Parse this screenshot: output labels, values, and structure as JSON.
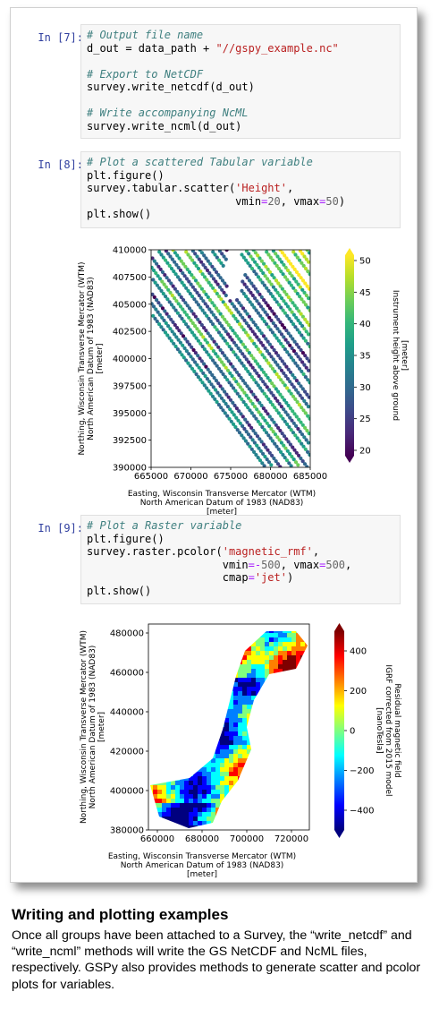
{
  "cells": [
    {
      "prompt": "In [7]:",
      "lines": [
        [
          {
            "t": "# Output file name",
            "c": "cmt"
          }
        ],
        [
          {
            "t": "d_out = data_path + ",
            "c": ""
          },
          {
            "t": "\"//gspy_example.nc\"",
            "c": "str"
          }
        ],
        [
          {
            "t": "",
            "c": ""
          }
        ],
        [
          {
            "t": "# Export to NetCDF",
            "c": "cmt"
          }
        ],
        [
          {
            "t": "survey.write_netcdf(d_out)",
            "c": ""
          }
        ],
        [
          {
            "t": "",
            "c": ""
          }
        ],
        [
          {
            "t": "# Write accompanying NcML",
            "c": "cmt"
          }
        ],
        [
          {
            "t": "survey.write_ncml(d_out)",
            "c": ""
          }
        ]
      ]
    },
    {
      "prompt": "In [8]:",
      "lines": [
        [
          {
            "t": "# Plot a scattered Tabular variable",
            "c": "cmt"
          }
        ],
        [
          {
            "t": "plt.figure()",
            "c": ""
          }
        ],
        [
          {
            "t": "survey.tabular.scatter(",
            "c": ""
          },
          {
            "t": "'Height'",
            "c": "str"
          },
          {
            "t": ",",
            "c": ""
          }
        ],
        [
          {
            "t": "                       vmin",
            "c": ""
          },
          {
            "t": "=",
            "c": "op"
          },
          {
            "t": "20",
            "c": "num"
          },
          {
            "t": ", vmax",
            "c": ""
          },
          {
            "t": "=",
            "c": "op"
          },
          {
            "t": "50",
            "c": "num"
          },
          {
            "t": ")",
            "c": ""
          }
        ],
        [
          {
            "t": "plt.show()",
            "c": ""
          }
        ]
      ]
    },
    {
      "prompt": "In [9]:",
      "lines": [
        [
          {
            "t": "# Plot a Raster variable",
            "c": "cmt"
          }
        ],
        [
          {
            "t": "plt.figure()",
            "c": ""
          }
        ],
        [
          {
            "t": "survey.raster.pcolor(",
            "c": ""
          },
          {
            "t": "'magnetic_rmf'",
            "c": "str"
          },
          {
            "t": ",",
            "c": ""
          }
        ],
        [
          {
            "t": "                     vmin",
            "c": ""
          },
          {
            "t": "=-",
            "c": "op"
          },
          {
            "t": "500",
            "c": "num"
          },
          {
            "t": ", vmax",
            "c": ""
          },
          {
            "t": "=",
            "c": "op"
          },
          {
            "t": "500",
            "c": "num"
          },
          {
            "t": ",",
            "c": ""
          }
        ],
        [
          {
            "t": "                     cmap",
            "c": ""
          },
          {
            "t": "=",
            "c": "op"
          },
          {
            "t": "'jet'",
            "c": "str"
          },
          {
            "t": ")",
            "c": ""
          }
        ],
        [
          {
            "t": "plt.show()",
            "c": ""
          }
        ]
      ]
    }
  ],
  "chart_data": [
    {
      "type": "scatter",
      "xlabel": [
        "Easting,  Wisconsin Transverse Mercator (WTM)",
        "North American Datum of 1983 (NAD83)",
        "[meter]"
      ],
      "ylabel": [
        "Northing,  Wisconsin Transverse Mercator (WTM)",
        "North American Datum of 1983 (NAD83)",
        "[meter]"
      ],
      "xticks": [
        "665000",
        "670000",
        "675000",
        "680000",
        "685000"
      ],
      "yticks": [
        "410000",
        "407500",
        "405000",
        "402500",
        "400000",
        "397500",
        "395000",
        "392500",
        "390000"
      ],
      "xlim": [
        665000,
        685000
      ],
      "ylim": [
        390000,
        410000
      ],
      "colorbar_label": [
        "Instrument height above ground",
        "[meter]"
      ],
      "colorbar_ticks": [
        "50",
        "45",
        "40",
        "35",
        "30",
        "25",
        "20"
      ],
      "clim": [
        20,
        50
      ],
      "colormap": "viridis"
    },
    {
      "type": "heatmap",
      "xlabel": [
        "Easting,  Wisconsin Transverse Mercator (WTM)",
        "North American Datum of 1983 (NAD83)",
        "[meter]"
      ],
      "ylabel": [
        "Northing,  Wisconsin Transverse Mercator (WTM)",
        "North American Datum of 1983 (NAD83)",
        "[meter]"
      ],
      "xticks": [
        "660000",
        "680000",
        "700000",
        "720000"
      ],
      "yticks": [
        "480000",
        "460000",
        "440000",
        "420000",
        "400000",
        "380000"
      ],
      "colorbar_label": [
        "Residual magnetic field",
        "IGRF corrected from 2015 model",
        "[nanoTesla]"
      ],
      "colorbar_ticks": [
        "400",
        "200",
        "0",
        "−200",
        "−400"
      ],
      "clim": [
        -500,
        500
      ],
      "colormap": "jet"
    }
  ],
  "caption": {
    "title": "Writing and plotting examples",
    "body": "Once all groups have been attached to a Survey, the “write_netcdf” and “write_ncml” methods will write the GS NetCDF and NcML files, respectively. GSPy also provides methods to generate scatter and pcolor plots for variables."
  }
}
